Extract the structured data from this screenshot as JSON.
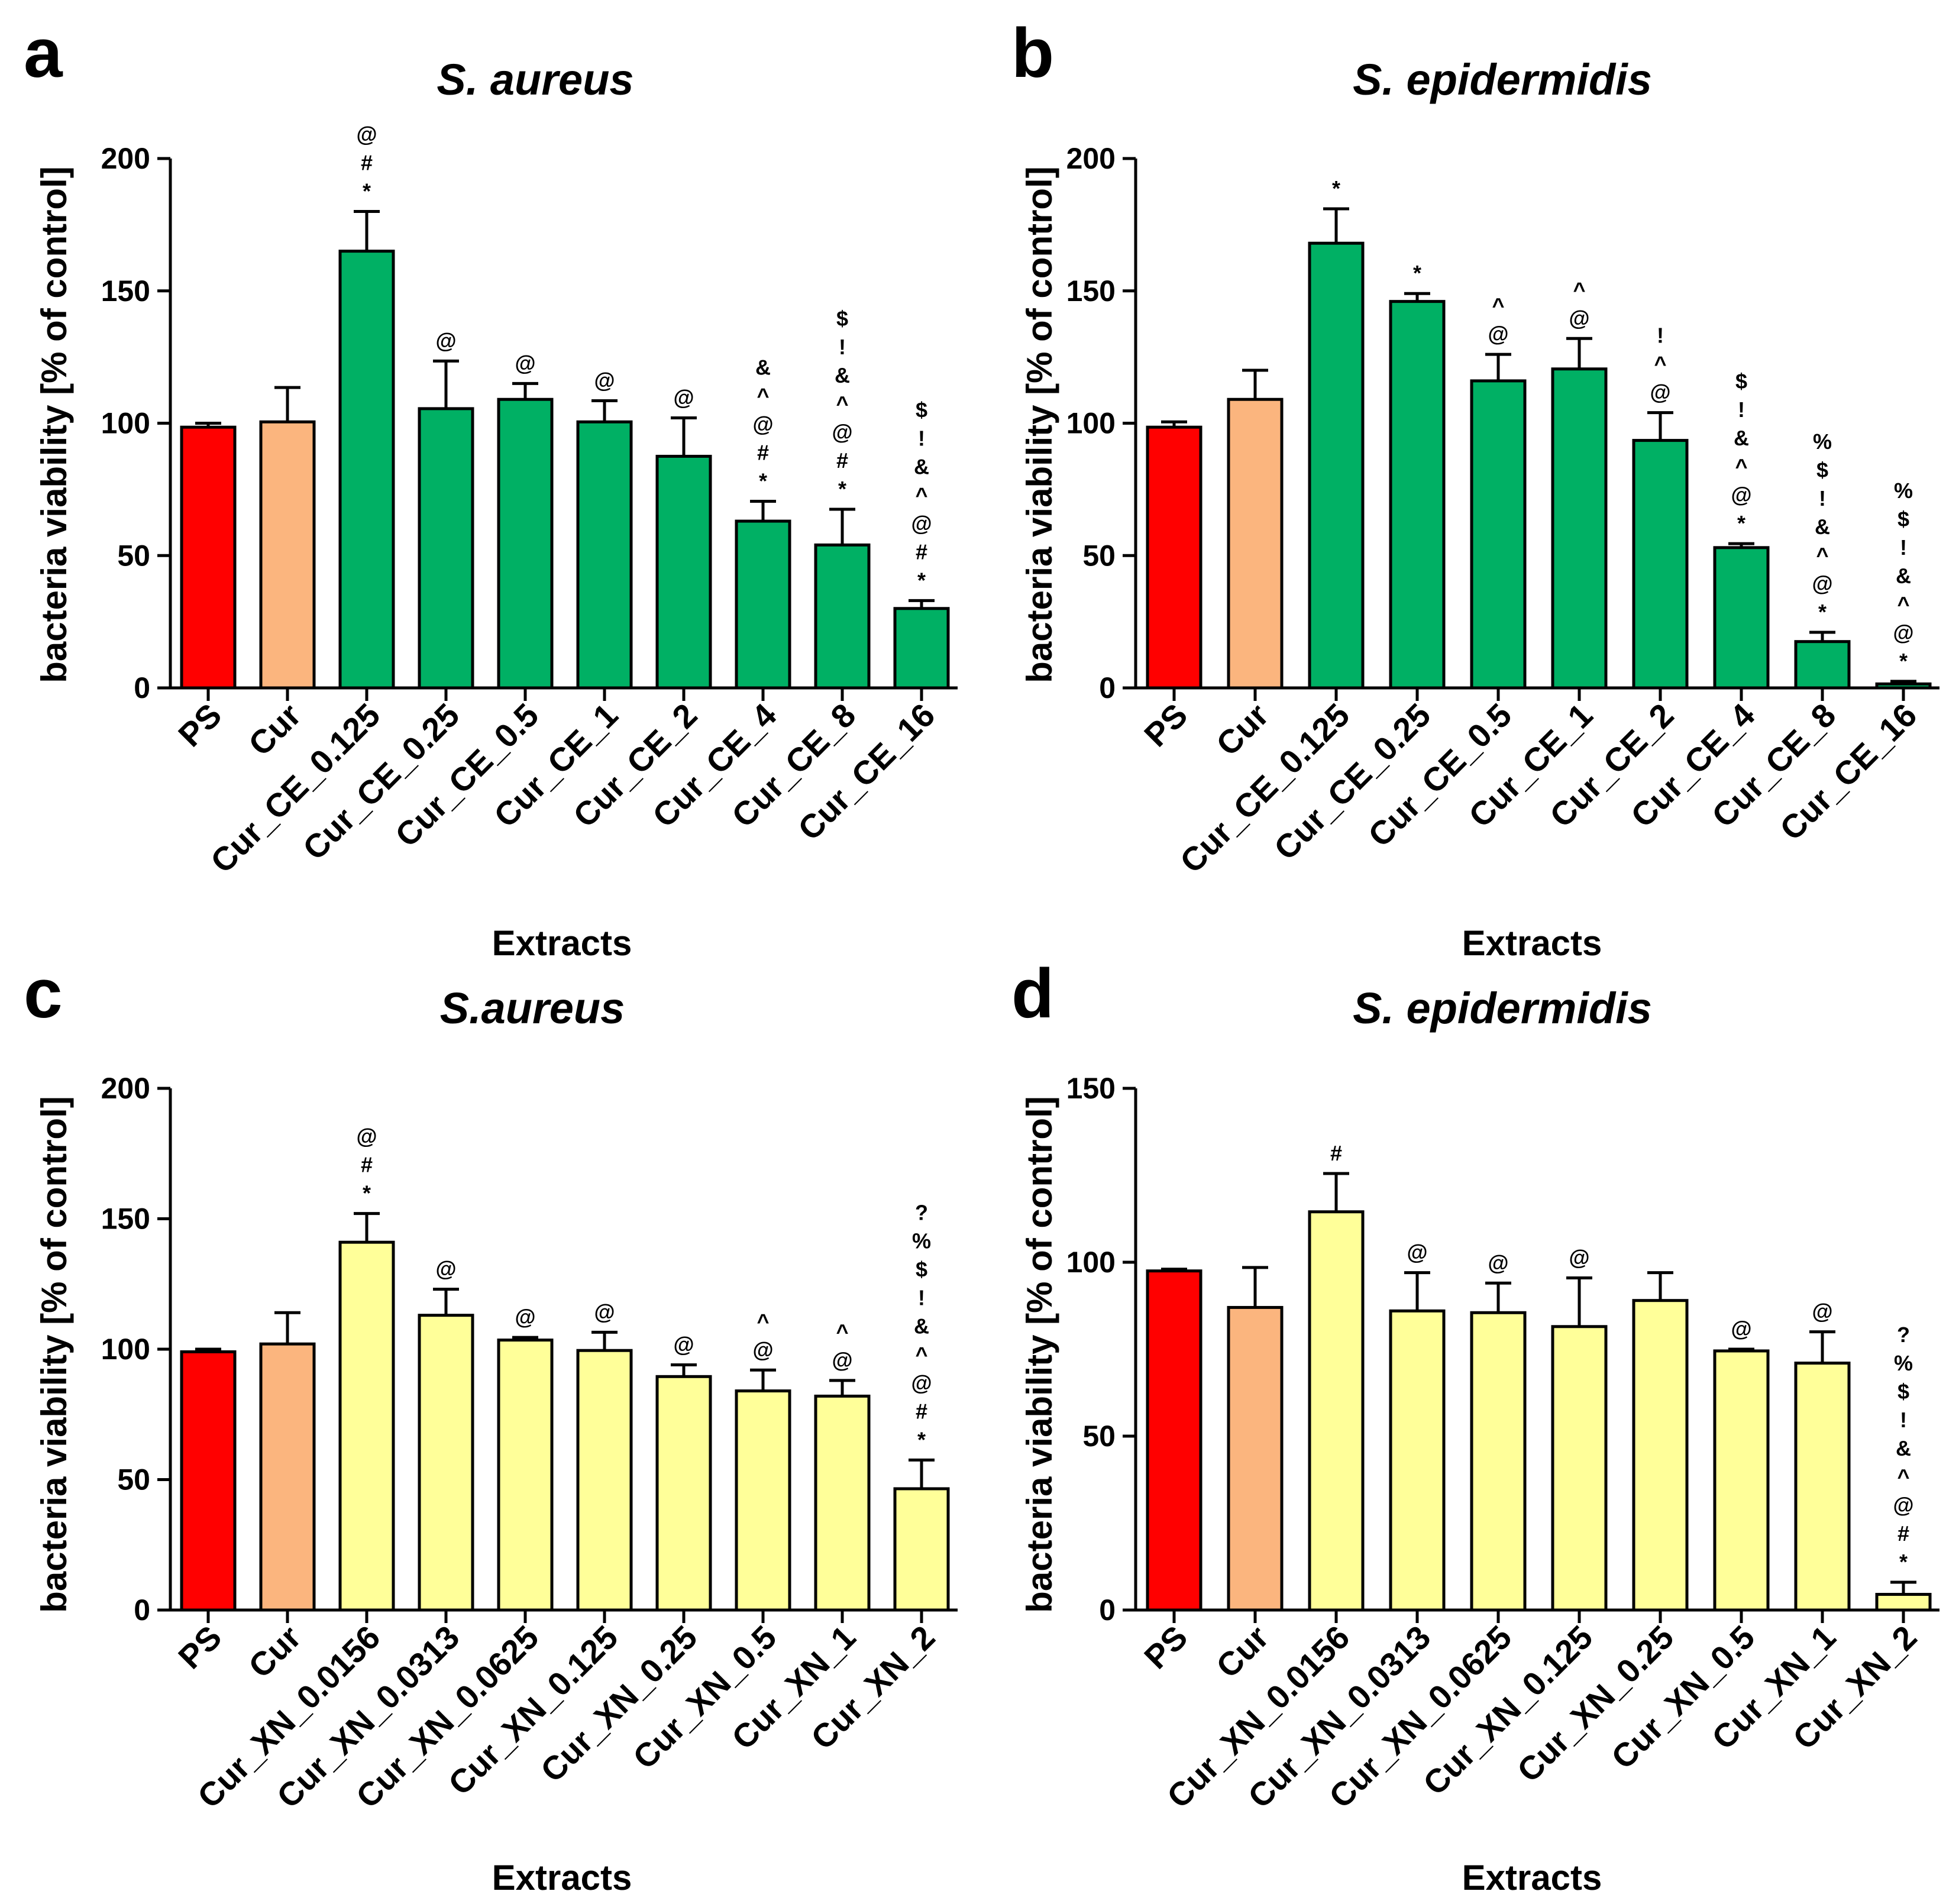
{
  "colors": {
    "PS": "#ff0000",
    "Cur": "#fbb57e",
    "CE": "#00b064",
    "XN": "#ffff99",
    "axis": "#000000"
  },
  "chart_data": [
    {
      "panel": "a",
      "type": "bar",
      "title": "S. aureus",
      "xlabel": "Extracts",
      "ylabel": "bacteria viability [% of control]",
      "ylim": [
        0,
        200
      ],
      "yticks": [
        0,
        50,
        100,
        150,
        200
      ],
      "categories": [
        "PS",
        "Cur",
        "Cur_CE_0.125",
        "Cur_CE_0.25",
        "Cur_CE_0.5",
        "Cur_CE_1",
        "Cur_CE_2",
        "Cur_CE_4",
        "Cur_CE_8",
        "Cur_CE_16"
      ],
      "values": [
        98.5,
        100.5,
        165,
        105.5,
        109,
        100.5,
        87.5,
        63,
        54,
        30
      ],
      "errors": [
        1.5,
        13,
        15,
        18,
        6,
        8,
        14.5,
        7.5,
        13.5,
        3
      ],
      "colors": [
        "PS",
        "Cur",
        "CE",
        "CE",
        "CE",
        "CE",
        "CE",
        "CE",
        "CE",
        "CE"
      ],
      "annotations": [
        [],
        [],
        [
          "*",
          "#",
          "@"
        ],
        [
          "@"
        ],
        [
          "@"
        ],
        [
          "@"
        ],
        [
          "@"
        ],
        [
          "*",
          "#",
          "@",
          "^",
          "&"
        ],
        [
          "*",
          "#",
          "@",
          "^",
          "&",
          "!",
          "$"
        ],
        [
          "*",
          "#",
          "@",
          "^",
          "&",
          "!",
          "$"
        ]
      ]
    },
    {
      "panel": "b",
      "type": "bar",
      "title": "S. epidermidis",
      "xlabel": "Extracts",
      "ylabel": "bacteria viability [% of control]",
      "ylim": [
        0,
        200
      ],
      "yticks": [
        0,
        50,
        100,
        150,
        200
      ],
      "categories": [
        "PS",
        "Cur",
        "Cur_CE_0.125",
        "Cur_CE_0.25",
        "Cur_CE_0.5",
        "Cur_CE_1",
        "Cur_CE_2",
        "Cur_CE_4",
        "Cur_CE_8",
        "Cur_CE_16"
      ],
      "values": [
        98.5,
        109,
        168,
        146,
        116,
        120.5,
        93.5,
        53,
        17.5,
        1.5
      ],
      "errors": [
        2,
        11,
        13,
        3,
        10,
        11.5,
        10.5,
        1.5,
        3.5,
        1
      ],
      "colors": [
        "PS",
        "Cur",
        "CE",
        "CE",
        "CE",
        "CE",
        "CE",
        "CE",
        "CE",
        "CE"
      ],
      "annotations": [
        [],
        [],
        [
          "*"
        ],
        [
          "*"
        ],
        [
          "@",
          "^"
        ],
        [
          "@",
          "^"
        ],
        [
          "@",
          "^",
          "!"
        ],
        [
          "*",
          "@",
          "^",
          "&",
          "!",
          "$"
        ],
        [
          "*",
          "@",
          "^",
          "&",
          "!",
          "$",
          "%"
        ],
        [
          "*",
          "@",
          "^",
          "&",
          "!",
          "$",
          "%"
        ]
      ]
    },
    {
      "panel": "c",
      "type": "bar",
      "title": "S.aureus",
      "xlabel": "Extracts",
      "ylabel": "bacteria viability [% of control]",
      "ylim": [
        0,
        200
      ],
      "yticks": [
        0,
        50,
        100,
        150,
        200
      ],
      "categories": [
        "PS",
        "Cur",
        "Cur_XN_0.0156",
        "Cur_XN_0.0313",
        "Cur_XN_0.0625",
        "Cur_XN_0.125",
        "Cur_XN_0.25",
        "Cur_XN_0.5",
        "Cur_XN_1",
        "Cur_XN_2"
      ],
      "values": [
        99,
        102,
        141,
        113,
        103.5,
        99.5,
        89.5,
        84,
        82,
        46.5
      ],
      "errors": [
        1,
        12,
        11,
        10,
        1,
        7,
        4.5,
        8,
        6,
        11
      ],
      "colors": [
        "PS",
        "Cur",
        "XN",
        "XN",
        "XN",
        "XN",
        "XN",
        "XN",
        "XN",
        "XN"
      ],
      "annotations": [
        [],
        [],
        [
          "*",
          "#",
          "@"
        ],
        [
          "@"
        ],
        [
          "@"
        ],
        [
          "@"
        ],
        [
          "@"
        ],
        [
          "@",
          "^"
        ],
        [
          "@",
          "^"
        ],
        [
          "*",
          "#",
          "@",
          "^",
          "&",
          "!",
          "$",
          "%",
          "?"
        ]
      ]
    },
    {
      "panel": "d",
      "type": "bar",
      "title": "S. epidermidis",
      "xlabel": "Extracts",
      "ylabel": "bacteria viability [% of control]",
      "ylim": [
        0,
        150
      ],
      "yticks": [
        0,
        50,
        100,
        150
      ],
      "categories": [
        "PS",
        "Cur",
        "Cur_XN_0.0156",
        "Cur_XN_0.0313",
        "Cur_XN_0.0625",
        "Cur_XN_0.125",
        "Cur_XN_0.25",
        "Cur_XN_0.5",
        "Cur_XN_1",
        "Cur_XN_2"
      ],
      "values": [
        97.5,
        87,
        114.5,
        86,
        85.5,
        81.5,
        89,
        74.5,
        71,
        4.5
      ],
      "errors": [
        0.5,
        11.5,
        11,
        11,
        8.5,
        14,
        8,
        0.5,
        9,
        3.5
      ],
      "colors": [
        "PS",
        "Cur",
        "XN",
        "XN",
        "XN",
        "XN",
        "XN",
        "XN",
        "XN",
        "XN"
      ],
      "annotations": [
        [],
        [],
        [
          "#"
        ],
        [
          "@"
        ],
        [
          "@"
        ],
        [
          "@"
        ],
        [],
        [
          "@"
        ],
        [
          "@"
        ],
        [
          "*",
          "#",
          "@",
          "^",
          "&",
          "!",
          "$",
          "%",
          "?"
        ]
      ]
    }
  ]
}
